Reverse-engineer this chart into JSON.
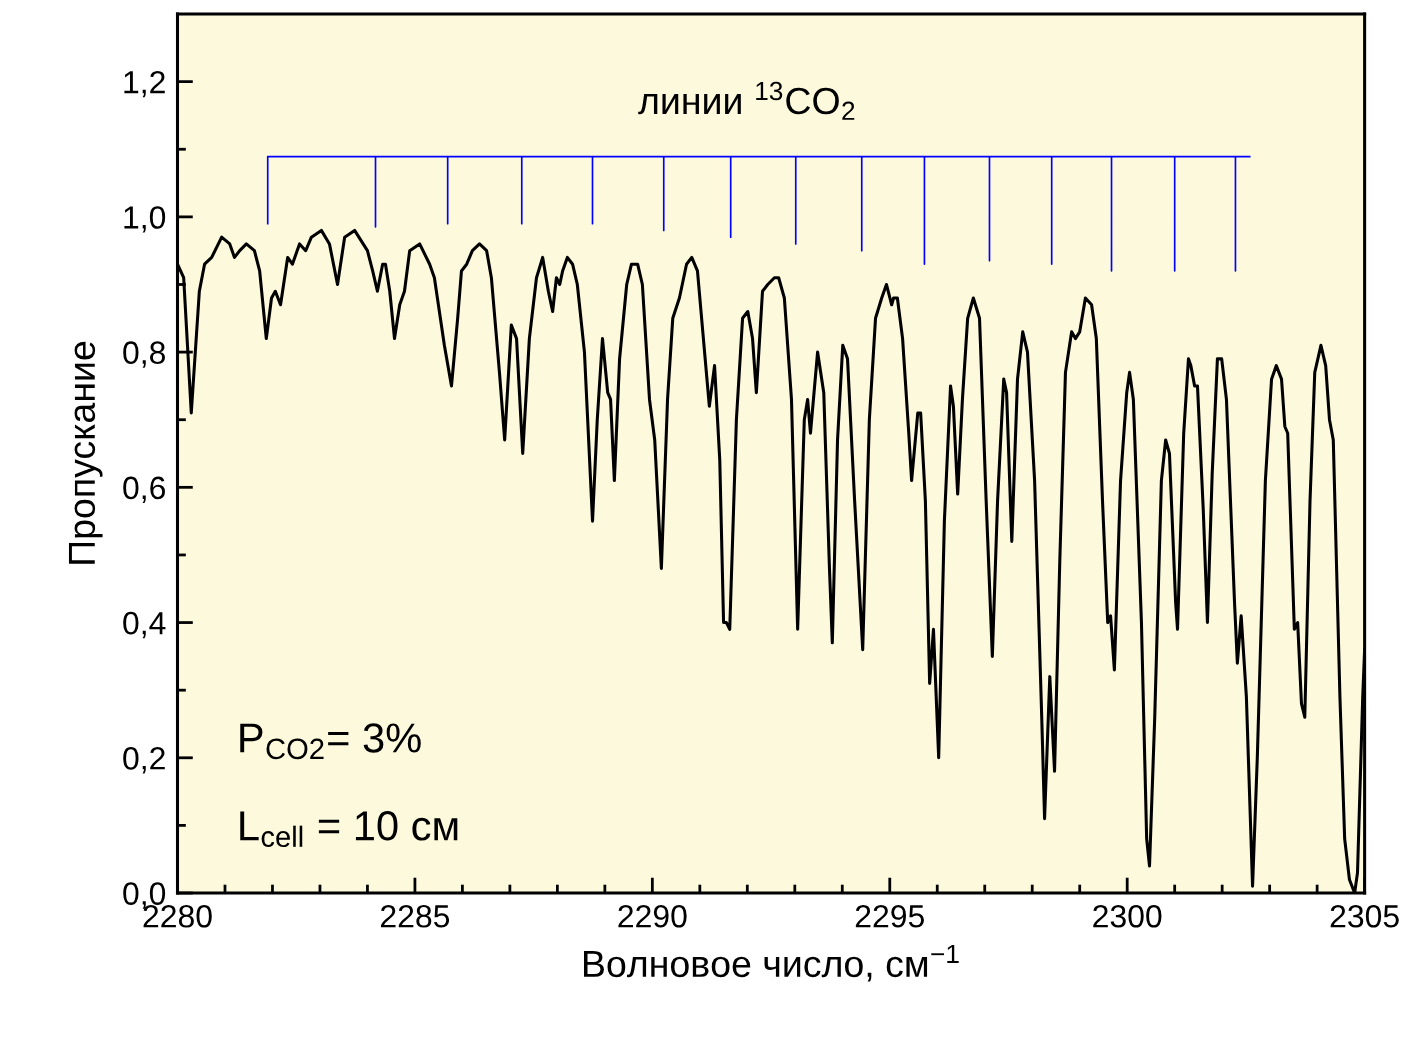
{
  "chart_data": {
    "type": "line",
    "xlabel": "Волновое число, см$^{−1}$",
    "ylabel": "Пропускание",
    "xlim": [
      2280,
      2305
    ],
    "ylim": [
      0,
      1.3
    ],
    "xticks": [
      2280,
      {
        "value": 2281,
        "label": null
      },
      {
        "value": 2282,
        "label": null
      },
      {
        "value": 2283,
        "label": null
      },
      {
        "value": 2284,
        "label": null
      },
      2285,
      {
        "value": 2286,
        "label": null
      },
      {
        "value": 2287,
        "label": null
      },
      {
        "value": 2288,
        "label": null
      },
      {
        "value": 2289,
        "label": null
      },
      2290,
      {
        "value": 2291,
        "label": null
      },
      {
        "value": 2292,
        "label": null
      },
      {
        "value": 2293,
        "label": null
      },
      {
        "value": 2294,
        "label": null
      },
      2295,
      {
        "value": 2296,
        "label": null
      },
      {
        "value": 2297,
        "label": null
      },
      {
        "value": 2298,
        "label": null
      },
      {
        "value": 2299,
        "label": null
      },
      2300,
      {
        "value": 2301,
        "label": null
      },
      {
        "value": 2302,
        "label": null
      },
      {
        "value": 2303,
        "label": null
      },
      {
        "value": 2304,
        "label": null
      },
      2305
    ],
    "yticks": [
      {
        "value": 0,
        "label": "0,0"
      },
      {
        "value": 0.1,
        "label": null
      },
      {
        "value": 0.2,
        "label": "0,2"
      },
      {
        "value": 0.3,
        "label": null
      },
      {
        "value": 0.4,
        "label": "0,4"
      },
      {
        "value": 0.5,
        "label": null
      },
      {
        "value": 0.6,
        "label": "0,6"
      },
      {
        "value": 0.7,
        "label": null
      },
      {
        "value": 0.8,
        "label": "0,8"
      },
      {
        "value": 0.9,
        "label": null
      },
      {
        "value": 1.0,
        "label": "1,0"
      },
      {
        "value": 1.1,
        "label": null
      },
      {
        "value": 1.2,
        "label": "1,2"
      }
    ],
    "grid": false,
    "legend": false,
    "marker": "none",
    "line_style": "solid",
    "annotations": [
      {
        "text": "линии $^{13}$CO$_{2}$",
        "x": 2292,
        "y": 1.089
      },
      "P$_{CO2}$= 3%",
      "L$_{cell}$ = 10 см"
    ],
    "series": [
      {
        "color": "#000000",
        "x": [
          2280.0,
          2280.13,
          2280.29,
          2280.46,
          2280.57,
          2280.72,
          2280.93,
          2281.1,
          2281.2,
          2281.31,
          2281.45,
          2281.62,
          2281.73,
          2281.87,
          2281.98,
          2282.06,
          2282.17,
          2282.32,
          2282.42,
          2282.57,
          2282.7,
          2282.82,
          2283.03,
          2283.2,
          2283.37,
          2283.52,
          2283.73,
          2284.0,
          2284.11,
          2284.21,
          2284.32,
          2284.38,
          2284.47,
          2284.57,
          2284.68,
          2284.78,
          2284.89,
          2285.1,
          2285.31,
          2285.41,
          2285.62,
          2285.77,
          2285.9,
          2285.98,
          2286.09,
          2286.21,
          2286.36,
          2286.51,
          2286.61,
          2286.78,
          2286.89,
          2287.03,
          2287.14,
          2287.27,
          2287.41,
          2287.56,
          2287.69,
          2287.81,
          2287.9,
          2287.98,
          2288.05,
          2288.11,
          2288.21,
          2288.32,
          2288.42,
          2288.57,
          2288.74,
          2288.84,
          2288.95,
          2289.06,
          2289.12,
          2289.2,
          2289.31,
          2289.46,
          2289.56,
          2289.69,
          2289.79,
          2289.94,
          2290.05,
          2290.19,
          2290.32,
          2290.43,
          2290.57,
          2290.72,
          2290.83,
          2290.95,
          2291.1,
          2291.2,
          2291.31,
          2291.42,
          2291.5,
          2291.56,
          2291.63,
          2291.77,
          2291.9,
          2292.01,
          2292.11,
          2292.19,
          2292.32,
          2292.43,
          2292.57,
          2292.66,
          2292.78,
          2292.93,
          2293.06,
          2293.2,
          2293.27,
          2293.33,
          2293.48,
          2293.61,
          2293.73,
          2293.79,
          2293.9,
          2294.01,
          2294.11,
          2294.26,
          2294.43,
          2294.57,
          2294.7,
          2294.83,
          2294.93,
          2295.04,
          2295.08,
          2295.16,
          2295.27,
          2295.4,
          2295.46,
          2295.59,
          2295.65,
          2295.75,
          2295.84,
          2295.92,
          2296.03,
          2296.15,
          2296.28,
          2296.34,
          2296.43,
          2296.53,
          2296.64,
          2296.76,
          2296.89,
          2297.03,
          2297.16,
          2297.27,
          2297.4,
          2297.46,
          2297.57,
          2297.69,
          2297.8,
          2297.9,
          2298.05,
          2298.2,
          2298.26,
          2298.37,
          2298.47,
          2298.58,
          2298.7,
          2298.83,
          2298.91,
          2299.0,
          2299.12,
          2299.25,
          2299.35,
          2299.48,
          2299.59,
          2299.65,
          2299.73,
          2299.86,
          2299.99,
          2300.05,
          2300.13,
          2300.3,
          2300.41,
          2300.47,
          2300.58,
          2300.72,
          2300.81,
          2300.89,
          2301.02,
          2301.06,
          2301.19,
          2301.29,
          2301.34,
          2301.42,
          2301.48,
          2301.6,
          2301.69,
          2301.79,
          2301.9,
          2301.99,
          2302.09,
          2302.26,
          2302.32,
          2302.4,
          2302.51,
          2302.64,
          2302.74,
          2302.91,
          2303.04,
          2303.14,
          2303.25,
          2303.32,
          2303.38,
          2303.52,
          2303.59,
          2303.67,
          2303.74,
          2303.85,
          2303.95,
          2304.08,
          2304.18,
          2304.26,
          2304.34,
          2304.48,
          2304.58,
          2304.68,
          2304.79,
          2304.85,
          2304.96,
          2305.0
        ],
        "values": [
          0.93,
          0.91,
          0.71,
          0.89,
          0.93,
          0.94,
          0.97,
          0.96,
          0.94,
          0.95,
          0.96,
          0.95,
          0.92,
          0.82,
          0.88,
          0.89,
          0.87,
          0.94,
          0.93,
          0.96,
          0.95,
          0.97,
          0.98,
          0.96,
          0.9,
          0.97,
          0.98,
          0.95,
          0.92,
          0.89,
          0.93,
          0.93,
          0.89,
          0.82,
          0.87,
          0.89,
          0.95,
          0.96,
          0.93,
          0.91,
          0.81,
          0.75,
          0.85,
          0.92,
          0.93,
          0.95,
          0.96,
          0.95,
          0.91,
          0.77,
          0.67,
          0.84,
          0.82,
          0.65,
          0.82,
          0.91,
          0.94,
          0.89,
          0.86,
          0.91,
          0.9,
          0.92,
          0.94,
          0.93,
          0.9,
          0.8,
          0.55,
          0.7,
          0.82,
          0.74,
          0.73,
          0.61,
          0.79,
          0.9,
          0.93,
          0.93,
          0.9,
          0.73,
          0.67,
          0.48,
          0.73,
          0.85,
          0.88,
          0.93,
          0.94,
          0.92,
          0.8,
          0.72,
          0.78,
          0.64,
          0.4,
          0.4,
          0.39,
          0.7,
          0.85,
          0.86,
          0.82,
          0.74,
          0.89,
          0.9,
          0.91,
          0.91,
          0.88,
          0.73,
          0.39,
          0.7,
          0.73,
          0.68,
          0.8,
          0.74,
          0.48,
          0.37,
          0.67,
          0.81,
          0.79,
          0.58,
          0.36,
          0.7,
          0.85,
          0.88,
          0.9,
          0.87,
          0.88,
          0.88,
          0.82,
          0.68,
          0.61,
          0.71,
          0.71,
          0.58,
          0.31,
          0.39,
          0.2,
          0.55,
          0.75,
          0.72,
          0.59,
          0.73,
          0.85,
          0.88,
          0.85,
          0.58,
          0.35,
          0.58,
          0.76,
          0.74,
          0.52,
          0.76,
          0.83,
          0.8,
          0.61,
          0.26,
          0.11,
          0.32,
          0.18,
          0.49,
          0.77,
          0.83,
          0.82,
          0.83,
          0.88,
          0.87,
          0.82,
          0.58,
          0.4,
          0.41,
          0.33,
          0.61,
          0.74,
          0.77,
          0.73,
          0.4,
          0.08,
          0.04,
          0.26,
          0.61,
          0.67,
          0.65,
          0.43,
          0.39,
          0.68,
          0.79,
          0.78,
          0.75,
          0.75,
          0.57,
          0.4,
          0.62,
          0.79,
          0.79,
          0.73,
          0.43,
          0.34,
          0.41,
          0.29,
          0.01,
          0.2,
          0.61,
          0.76,
          0.78,
          0.76,
          0.69,
          0.68,
          0.39,
          0.4,
          0.28,
          0.26,
          0.58,
          0.77,
          0.81,
          0.78,
          0.7,
          0.67,
          0.29,
          0.08,
          0.02,
          0.0,
          0.03,
          0.29,
          0.36
        ]
      },
      {
        "color": "#0000ff",
        "x": [
          2281.9,
          2281.9,
          2284.17,
          2284.17,
          2284.17,
          2285.69,
          2285.69,
          2285.69,
          2287.25,
          2287.25,
          2287.25,
          2288.74,
          2288.74,
          2288.74,
          2290.24,
          2290.24,
          2290.24,
          2291.65,
          2291.65,
          2291.65,
          2293.02,
          2293.02,
          2293.02,
          2294.41,
          2294.41,
          2294.41,
          2295.73,
          2295.73,
          2295.73,
          2297.1,
          2297.1,
          2297.1,
          2298.41,
          2298.41,
          2298.41,
          2299.67,
          2299.67,
          2299.67,
          2301.0,
          2301.0,
          2301.0,
          2302.28,
          2302.28,
          2302.28,
          2302.58
        ],
        "values": [
          0.99,
          1.089,
          1.089,
          0.985,
          1.089,
          1.089,
          0.99,
          1.089,
          1.089,
          0.99,
          1.089,
          1.089,
          0.99,
          1.089,
          1.089,
          0.98,
          1.089,
          1.089,
          0.97,
          1.089,
          1.089,
          0.96,
          1.089,
          1.089,
          0.95,
          1.089,
          1.089,
          0.93,
          1.089,
          1.089,
          0.935,
          1.089,
          1.089,
          0.93,
          1.089,
          1.089,
          0.92,
          1.089,
          1.089,
          0.92,
          1.089,
          1.089,
          0.92,
          1.089,
          1.089
        ]
      }
    ]
  }
}
